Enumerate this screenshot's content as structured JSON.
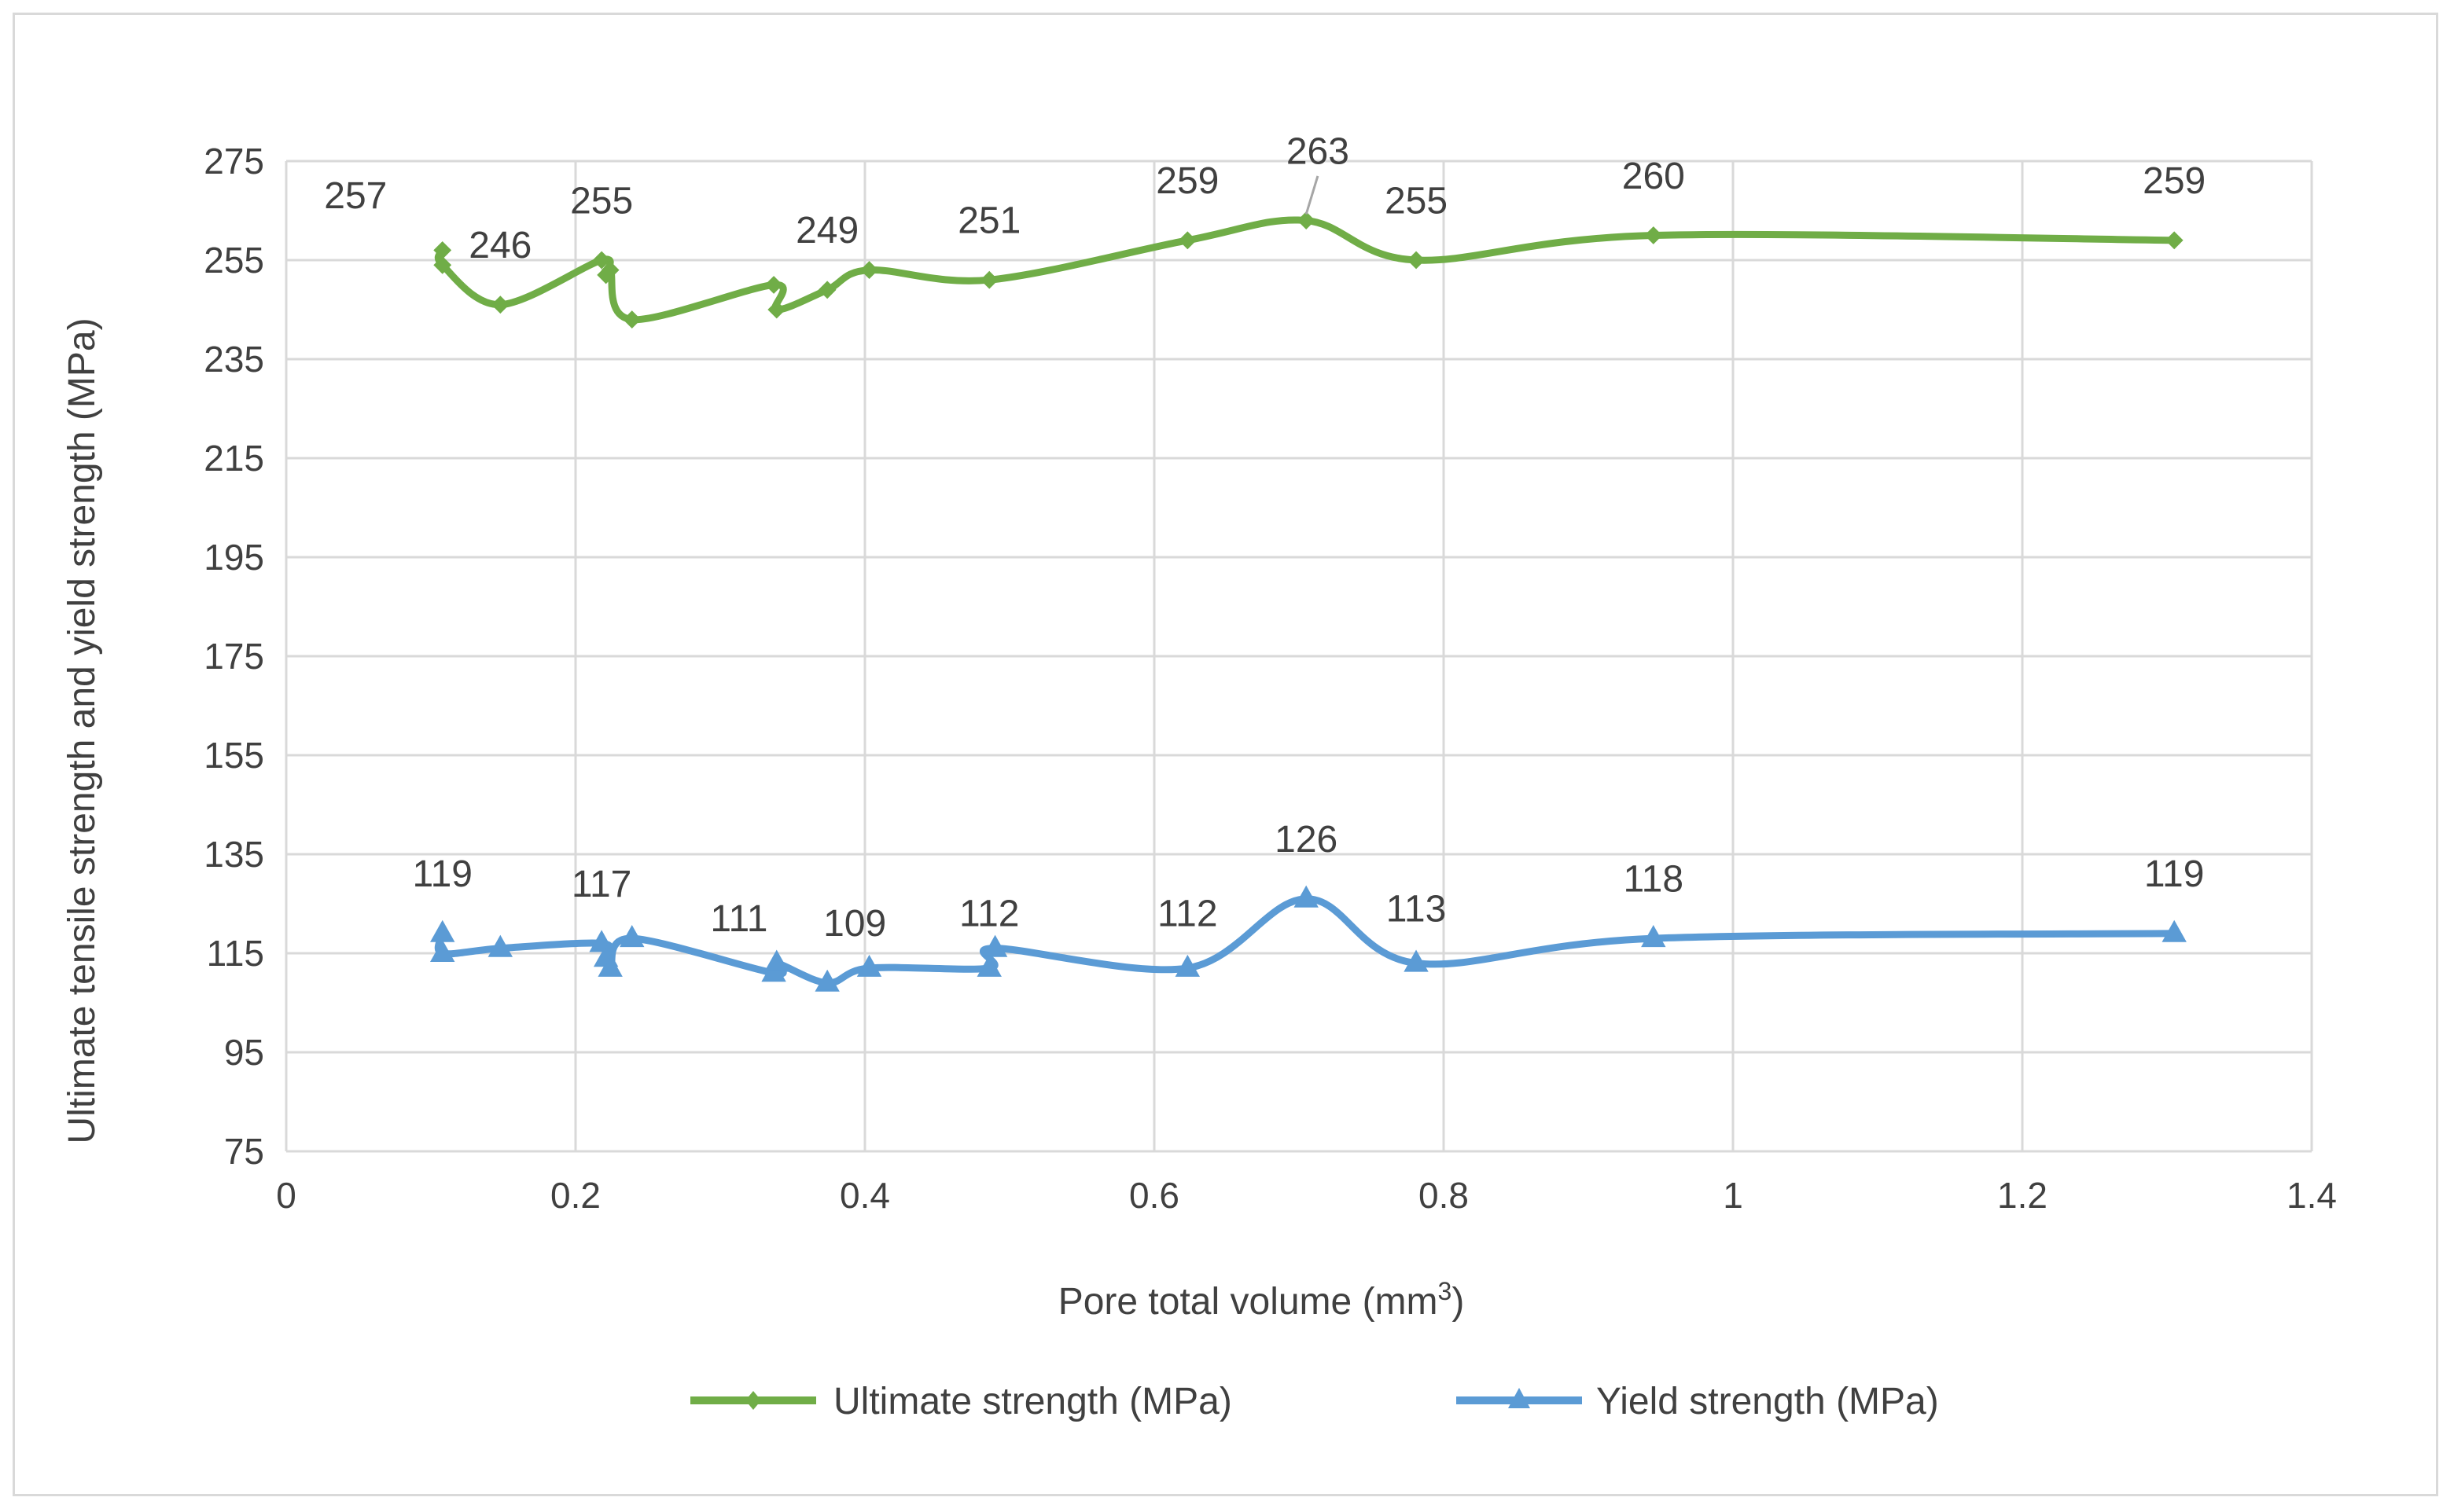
{
  "chart_data": {
    "type": "line",
    "title": "",
    "xlabel": "Pore total volume (mm",
    "xlabel_sup": "3",
    "xlabel_suffix": ")",
    "ylabel": "Ultimate tensile strength and yield strength (MPa)",
    "xlim": [
      0,
      1.4
    ],
    "ylim": [
      75,
      275
    ],
    "xticks": [
      0,
      0.2,
      0.4,
      0.6,
      0.8,
      1,
      1.2,
      1.4
    ],
    "yticks": [
      75,
      95,
      115,
      135,
      155,
      175,
      195,
      215,
      235,
      255,
      275
    ],
    "grid": true,
    "legend_position": "bottom",
    "colors": {
      "ultimate": "#70ad47",
      "yield": "#5b9bd5",
      "grid": "#d9d9d9"
    },
    "series": [
      {
        "name": "Ultimate strength (MPa)",
        "marker": "diamond",
        "points": [
          [
            0.108,
            257
          ],
          [
            0.108,
            254
          ],
          [
            0.148,
            246
          ],
          [
            0.218,
            255
          ],
          [
            0.221,
            252
          ],
          [
            0.224,
            253
          ],
          [
            0.239,
            243
          ],
          [
            0.337,
            250
          ],
          [
            0.339,
            245
          ],
          [
            0.374,
            249
          ],
          [
            0.403,
            253
          ],
          [
            0.486,
            251
          ],
          [
            0.623,
            259
          ],
          [
            0.705,
            263
          ],
          [
            0.781,
            255
          ],
          [
            0.945,
            260
          ],
          [
            1.305,
            259
          ]
        ],
        "labels": [
          {
            "text": "257",
            "x": 0.048,
            "y": 268
          },
          {
            "text": "246",
            "x": 0.148,
            "y": 258
          },
          {
            "text": "255",
            "x": 0.218,
            "y": 267
          },
          {
            "text": "249",
            "x": 0.374,
            "y": 261
          },
          {
            "text": "251",
            "x": 0.486,
            "y": 263
          },
          {
            "text": "259",
            "x": 0.623,
            "y": 271
          },
          {
            "text": "263",
            "x": 0.713,
            "y": 277
          },
          {
            "text": "255",
            "x": 0.781,
            "y": 267
          },
          {
            "text": "260",
            "x": 0.945,
            "y": 272
          },
          {
            "text": "259",
            "x": 1.305,
            "y": 271
          }
        ]
      },
      {
        "name": "Yield strength (MPa)",
        "marker": "triangle",
        "points": [
          [
            0.108,
            119
          ],
          [
            0.108,
            115
          ],
          [
            0.148,
            116
          ],
          [
            0.218,
            117
          ],
          [
            0.221,
            114
          ],
          [
            0.224,
            112
          ],
          [
            0.239,
            118
          ],
          [
            0.337,
            111
          ],
          [
            0.339,
            113
          ],
          [
            0.374,
            109
          ],
          [
            0.403,
            112
          ],
          [
            0.486,
            112
          ],
          [
            0.49,
            116
          ],
          [
            0.623,
            112
          ],
          [
            0.705,
            126
          ],
          [
            0.781,
            113
          ],
          [
            0.945,
            118
          ],
          [
            1.305,
            119
          ]
        ],
        "labels": [
          {
            "text": "119",
            "x": 0.108,
            "y": 131
          },
          {
            "text": "117",
            "x": 0.218,
            "y": 129
          },
          {
            "text": "111",
            "x": 0.313,
            "y": 122
          },
          {
            "text": "109",
            "x": 0.393,
            "y": 121
          },
          {
            "text": "112",
            "x": 0.486,
            "y": 123
          },
          {
            "text": "112",
            "x": 0.623,
            "y": 123
          },
          {
            "text": "126",
            "x": 0.705,
            "y": 138
          },
          {
            "text": "113",
            "x": 0.781,
            "y": 124
          },
          {
            "text": "118",
            "x": 0.945,
            "y": 130
          },
          {
            "text": "119",
            "x": 1.305,
            "y": 131
          }
        ]
      }
    ]
  }
}
